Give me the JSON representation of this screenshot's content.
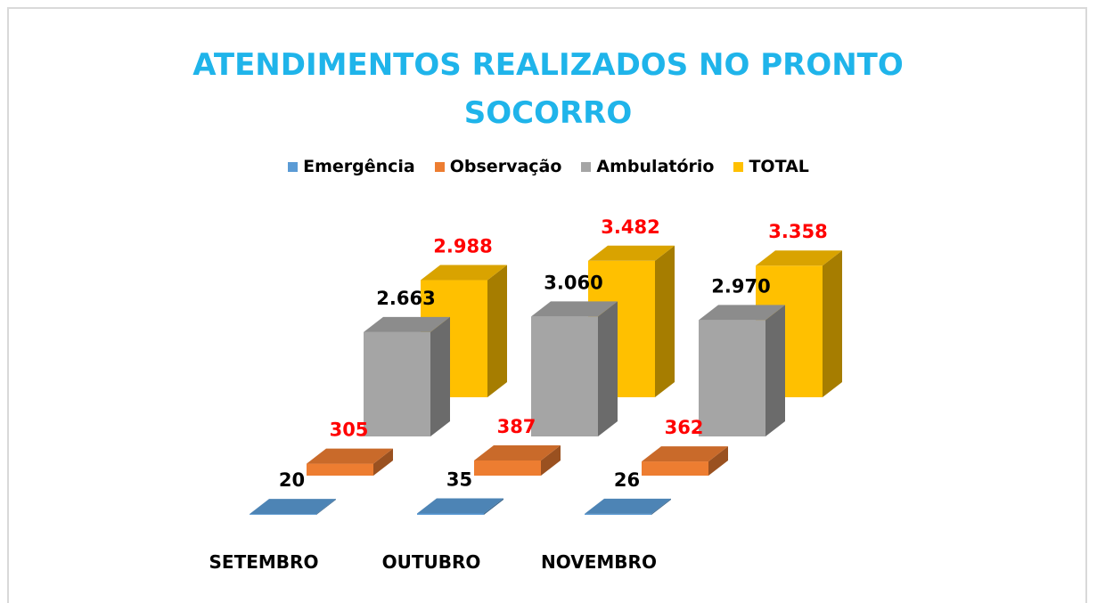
{
  "chart_data": {
    "type": "bar3d",
    "title": "ATENDIMENTOS REALIZADOS NO PRONTO SOCORRO",
    "categories": [
      "SETEMBRO",
      "OUTUBRO",
      "NOVEMBRO"
    ],
    "series": [
      {
        "name": "Emergência",
        "color": "#5b9bd5",
        "label_color": "#000000",
        "values": [
          20,
          35,
          26
        ]
      },
      {
        "name": "Observação",
        "color": "#ed7d31",
        "label_color": "#ff0000",
        "values": [
          305,
          387,
          362
        ]
      },
      {
        "name": "Ambulatório",
        "color": "#a5a5a5",
        "label_color": "#000000",
        "values": [
          2663,
          3060,
          2970
        ],
        "value_labels": [
          "2.663",
          "3.060",
          "2.970"
        ]
      },
      {
        "name": "TOTAL",
        "color": "#ffc000",
        "label_color": "#ff0000",
        "values": [
          2988,
          3482,
          3358
        ],
        "value_labels": [
          "2.988",
          "3.482",
          "3.358"
        ]
      }
    ],
    "legend": "top"
  }
}
